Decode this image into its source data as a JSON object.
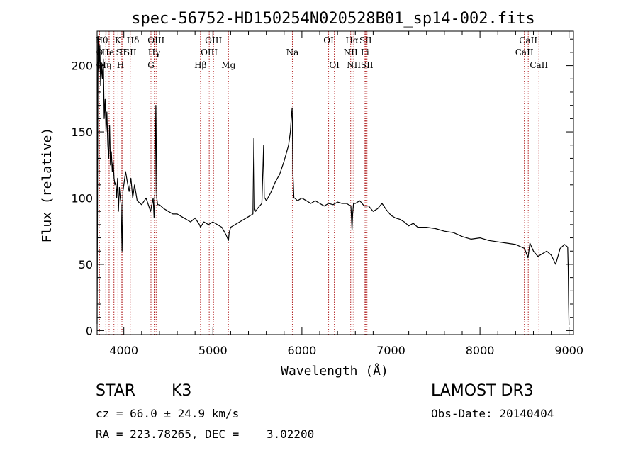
{
  "chart_data": {
    "type": "line",
    "title": "spec-56752-HD150254N020528B01_sp14-002.fits",
    "xlabel": "Wavelength (Å)",
    "ylabel": "Flux (relative)",
    "xlim": [
      3700,
      9050
    ],
    "ylim": [
      -3,
      226
    ],
    "xticks": [
      4000,
      5000,
      6000,
      7000,
      8000,
      9000
    ],
    "yticks": [
      0,
      50,
      100,
      150,
      200
    ],
    "series": [
      {
        "name": "flux",
        "x": [
          3700,
          3710,
          3720,
          3730,
          3740,
          3750,
          3760,
          3770,
          3780,
          3790,
          3800,
          3810,
          3820,
          3830,
          3840,
          3850,
          3860,
          3870,
          3880,
          3890,
          3900,
          3910,
          3920,
          3930,
          3940,
          3950,
          3960,
          3970,
          3980,
          3990,
          4000,
          4020,
          4040,
          4060,
          4080,
          4100,
          4120,
          4150,
          4200,
          4250,
          4300,
          4330,
          4340,
          4350,
          4360,
          4370,
          4380,
          4400,
          4450,
          4500,
          4550,
          4600,
          4650,
          4700,
          4750,
          4800,
          4850,
          4861,
          4900,
          4950,
          5000,
          5050,
          5100,
          5150,
          5175,
          5183,
          5200,
          5250,
          5300,
          5350,
          5400,
          5450,
          5460,
          5470,
          5480,
          5500,
          5550,
          5570,
          5577,
          5585,
          5600,
          5650,
          5700,
          5750,
          5800,
          5850,
          5870,
          5880,
          5890,
          5893,
          5896,
          5900,
          5910,
          5920,
          5950,
          6000,
          6050,
          6100,
          6150,
          6200,
          6250,
          6300,
          6350,
          6400,
          6450,
          6500,
          6550,
          6563,
          6570,
          6580,
          6600,
          6650,
          6700,
          6750,
          6800,
          6850,
          6900,
          6950,
          7000,
          7050,
          7100,
          7150,
          7200,
          7250,
          7300,
          7400,
          7500,
          7600,
          7700,
          7800,
          7900,
          8000,
          8100,
          8200,
          8300,
          8400,
          8500,
          8540,
          8560,
          8600,
          8650,
          8700,
          8750,
          8800,
          8850,
          8900,
          8950,
          8985,
          8990,
          8995,
          9000
        ],
        "values": [
          5,
          222,
          195,
          215,
          185,
          200,
          190,
          205,
          160,
          175,
          150,
          165,
          140,
          130,
          155,
          125,
          135,
          120,
          128,
          115,
          110,
          112,
          100,
          115,
          90,
          108,
          100,
          95,
          60,
          105,
          110,
          120,
          112,
          105,
          115,
          100,
          110,
          98,
          95,
          100,
          90,
          100,
          85,
          105,
          170,
          100,
          95,
          95,
          92,
          90,
          88,
          88,
          86,
          84,
          82,
          85,
          80,
          78,
          82,
          80,
          82,
          80,
          78,
          72,
          68,
          74,
          78,
          80,
          82,
          84,
          86,
          88,
          145,
          92,
          90,
          92,
          96,
          140,
          100,
          100,
          98,
          104,
          112,
          118,
          128,
          140,
          150,
          160,
          168,
          158,
          140,
          118,
          100,
          100,
          98,
          100,
          98,
          96,
          98,
          96,
          94,
          96,
          95,
          97,
          96,
          96,
          94,
          76,
          88,
          96,
          96,
          98,
          94,
          94,
          90,
          92,
          96,
          91,
          87,
          85,
          84,
          82,
          79,
          81,
          78,
          78,
          77,
          75,
          74,
          71,
          69,
          70,
          68,
          67,
          66,
          65,
          62,
          55,
          66,
          60,
          56,
          58,
          60,
          57,
          50,
          62,
          65,
          63,
          48,
          20,
          4
        ]
      }
    ],
    "lines": [
      {
        "label": "O",
        "row": 2,
        "x": 3727,
        "lx": 3727
      },
      {
        "label": "Hθ",
        "row": 1,
        "x": 3798,
        "lx": 3752
      },
      {
        "label": "Hη",
        "row": 3,
        "x": 3835,
        "lx": 3790
      },
      {
        "label": "He",
        "row": 2,
        "x": 3889,
        "lx": 3822
      },
      {
        "label": "O",
        "row": 3,
        "x": 3727,
        "lx": 3727
      },
      {
        "label": "K",
        "row": 1,
        "x": 3934,
        "lx": 3934
      },
      {
        "label": "S",
        "row": 2,
        "x": 3969,
        "lx": 3944
      },
      {
        "label": "H",
        "row": 3,
        "x": 3969,
        "lx": 3963
      },
      {
        "label": "II",
        "row": 2,
        "x": 3980,
        "lx": 3990
      },
      {
        "label": "Hδ",
        "row": 1,
        "x": 4102,
        "lx": 4102
      },
      {
        "label": "SII",
        "row": 2,
        "x": 4072,
        "lx": 4072
      },
      {
        "label": "OIII",
        "row": 1,
        "x": 4363,
        "lx": 4363
      },
      {
        "label": "Hγ",
        "row": 2,
        "x": 4341,
        "lx": 4341
      },
      {
        "label": "G",
        "row": 3,
        "x": 4305,
        "lx": 4305
      },
      {
        "label": "Hβ",
        "row": 3,
        "x": 4861,
        "lx": 4861
      },
      {
        "label": "OIII",
        "row": 1,
        "x": 5007,
        "lx": 5007
      },
      {
        "label": "OIII",
        "row": 2,
        "x": 4959,
        "lx": 4959
      },
      {
        "label": "Mg",
        "row": 3,
        "x": 5175,
        "lx": 5175
      },
      {
        "label": "Na",
        "row": 2,
        "x": 5893,
        "lx": 5893
      },
      {
        "label": "OI",
        "row": 1,
        "x": 6300,
        "lx": 6300
      },
      {
        "label": "OI",
        "row": 3,
        "x": 6364,
        "lx": 6364
      },
      {
        "label": "Hα",
        "row": 1,
        "x": 6563,
        "lx": 6563
      },
      {
        "label": "SII",
        "row": 1,
        "x": 6716,
        "lx": 6716
      },
      {
        "label": "NII",
        "row": 2,
        "x": 6548,
        "lx": 6548
      },
      {
        "label": "Li",
        "row": 2,
        "x": 6708,
        "lx": 6708
      },
      {
        "label": "NII",
        "row": 3,
        "x": 6583,
        "lx": 6583
      },
      {
        "label": "SII",
        "row": 3,
        "x": 6731,
        "lx": 6731
      },
      {
        "label": "CaII",
        "row": 1,
        "x": 8542,
        "lx": 8542
      },
      {
        "label": "CaII",
        "row": 2,
        "x": 8498,
        "lx": 8498
      },
      {
        "label": "CaII",
        "row": 3,
        "x": 8662,
        "lx": 8662
      }
    ],
    "line_color": "#b22222",
    "data_color": "#000000"
  },
  "info": {
    "class": "STAR",
    "subclass": "K3",
    "survey": "LAMOST DR3",
    "cz": "cz = 66.0 ± 24.9 km/s",
    "obs_date": "Obs-Date: 20140404",
    "radec": "RA = 223.78265, DEC =    3.02200"
  }
}
